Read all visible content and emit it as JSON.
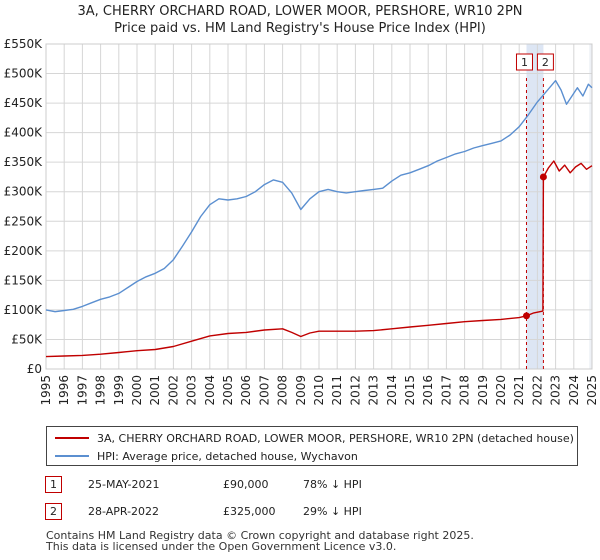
{
  "title": "3A, CHERRY ORCHARD ROAD, LOWER MOOR, PERSHORE, WR10 2PN",
  "subtitle": "Price paid vs. HM Land Registry's House Price Index (HPI)",
  "legend": {
    "red_label": "3A, CHERRY ORCHARD ROAD, LOWER MOOR, PERSHORE, WR10 2PN (detached house)",
    "blue_label": "HPI: Average price, detached house, Wychavon"
  },
  "transactions": [
    {
      "id": "1",
      "date": "25-MAY-2021",
      "price": "£90,000",
      "hpi": "78% ↓ HPI"
    },
    {
      "id": "2",
      "date": "28-APR-2022",
      "price": "£325,000",
      "hpi": "29% ↓ HPI"
    }
  ],
  "footer": {
    "line1": "Contains HM Land Registry data © Crown copyright and database right 2025.",
    "line2": "This data is licensed under the Open Government Licence v3.0."
  },
  "colors": {
    "red": "#c00000",
    "blue": "#5b8fd0",
    "grid": "#d6d6d6",
    "band": "#dde6f4"
  },
  "chart_data": {
    "type": "line",
    "title": "3A, CHERRY ORCHARD ROAD, LOWER MOOR, PERSHORE, WR10 2PN",
    "subtitle": "Price paid vs. HM Land Registry's House Price Index (HPI)",
    "xlim": [
      1995,
      2025
    ],
    "ylim": [
      0,
      550000
    ],
    "yticks": [
      {
        "v": 0,
        "label": "£0"
      },
      {
        "v": 50000,
        "label": "£50K"
      },
      {
        "v": 100000,
        "label": "£100K"
      },
      {
        "v": 150000,
        "label": "£150K"
      },
      {
        "v": 200000,
        "label": "£200K"
      },
      {
        "v": 250000,
        "label": "£250K"
      },
      {
        "v": 300000,
        "label": "£300K"
      },
      {
        "v": 350000,
        "label": "£350K"
      },
      {
        "v": 400000,
        "label": "£400K"
      },
      {
        "v": 450000,
        "label": "£450K"
      },
      {
        "v": 500000,
        "label": "£500K"
      },
      {
        "v": 550000,
        "label": "£550K"
      }
    ],
    "xticks": [
      "1995",
      "1996",
      "1997",
      "1998",
      "1999",
      "2000",
      "2001",
      "2002",
      "2003",
      "2004",
      "2005",
      "2006",
      "2007",
      "2008",
      "2009",
      "2010",
      "2011",
      "2012",
      "2013",
      "2014",
      "2015",
      "2016",
      "2017",
      "2018",
      "2019",
      "2020",
      "2021",
      "2022",
      "2023",
      "2024",
      "2025"
    ],
    "sale_markers": [
      {
        "id": "1",
        "x": 2021.4,
        "y": 90000
      },
      {
        "id": "2",
        "x": 2022.33,
        "y": 325000
      }
    ],
    "series": [
      {
        "name": "HPI: Average price, detached house, Wychavon",
        "color": "#5b8fd0",
        "points": [
          [
            1995,
            100000
          ],
          [
            1995.5,
            97000
          ],
          [
            1996,
            99000
          ],
          [
            1996.5,
            101000
          ],
          [
            1997,
            106000
          ],
          [
            1997.5,
            112000
          ],
          [
            1998,
            118000
          ],
          [
            1998.5,
            122000
          ],
          [
            1999,
            128000
          ],
          [
            1999.5,
            138000
          ],
          [
            2000,
            148000
          ],
          [
            2000.5,
            156000
          ],
          [
            2001,
            162000
          ],
          [
            2001.5,
            170000
          ],
          [
            2002,
            185000
          ],
          [
            2002.5,
            208000
          ],
          [
            2003,
            232000
          ],
          [
            2003.5,
            258000
          ],
          [
            2004,
            278000
          ],
          [
            2004.5,
            288000
          ],
          [
            2005,
            286000
          ],
          [
            2005.5,
            288000
          ],
          [
            2006,
            292000
          ],
          [
            2006.5,
            300000
          ],
          [
            2007,
            312000
          ],
          [
            2007.5,
            320000
          ],
          [
            2008,
            316000
          ],
          [
            2008.5,
            298000
          ],
          [
            2009,
            270000
          ],
          [
            2009.5,
            288000
          ],
          [
            2010,
            300000
          ],
          [
            2010.5,
            304000
          ],
          [
            2011,
            300000
          ],
          [
            2011.5,
            298000
          ],
          [
            2012,
            300000
          ],
          [
            2012.5,
            302000
          ],
          [
            2013,
            304000
          ],
          [
            2013.5,
            306000
          ],
          [
            2014,
            318000
          ],
          [
            2014.5,
            328000
          ],
          [
            2015,
            332000
          ],
          [
            2015.5,
            338000
          ],
          [
            2016,
            344000
          ],
          [
            2016.5,
            352000
          ],
          [
            2017,
            358000
          ],
          [
            2017.5,
            364000
          ],
          [
            2018,
            368000
          ],
          [
            2018.5,
            374000
          ],
          [
            2019,
            378000
          ],
          [
            2019.5,
            382000
          ],
          [
            2020,
            386000
          ],
          [
            2020.5,
            396000
          ],
          [
            2021,
            410000
          ],
          [
            2021.5,
            430000
          ],
          [
            2022,
            452000
          ],
          [
            2022.5,
            470000
          ],
          [
            2023,
            488000
          ],
          [
            2023.3,
            472000
          ],
          [
            2023.6,
            448000
          ],
          [
            2023.9,
            462000
          ],
          [
            2024.2,
            476000
          ],
          [
            2024.5,
            462000
          ],
          [
            2024.8,
            482000
          ],
          [
            2025,
            476000
          ]
        ]
      },
      {
        "name": "3A, CHERRY ORCHARD ROAD, LOWER MOOR, PERSHORE, WR10 2PN (detached house)",
        "color": "#c00000",
        "points": [
          [
            1995,
            21000
          ],
          [
            1996,
            22000
          ],
          [
            1997,
            23000
          ],
          [
            1998,
            25000
          ],
          [
            1999,
            28000
          ],
          [
            2000,
            31000
          ],
          [
            2001,
            33000
          ],
          [
            2002,
            38000
          ],
          [
            2003,
            47000
          ],
          [
            2004,
            56000
          ],
          [
            2005,
            60000
          ],
          [
            2006,
            62000
          ],
          [
            2007,
            66000
          ],
          [
            2008,
            68000
          ],
          [
            2008.5,
            62000
          ],
          [
            2009,
            55000
          ],
          [
            2009.5,
            61000
          ],
          [
            2010,
            64000
          ],
          [
            2011,
            64000
          ],
          [
            2012,
            64000
          ],
          [
            2013,
            65000
          ],
          [
            2014,
            68000
          ],
          [
            2015,
            71000
          ],
          [
            2016,
            74000
          ],
          [
            2017,
            77000
          ],
          [
            2018,
            80000
          ],
          [
            2019,
            82000
          ],
          [
            2020,
            84000
          ],
          [
            2021,
            87000
          ],
          [
            2021.4,
            90000
          ],
          [
            2021.8,
            95000
          ],
          [
            2022.3,
            98000
          ],
          [
            2022.33,
            325000
          ],
          [
            2022.6,
            340000
          ],
          [
            2022.9,
            352000
          ],
          [
            2023.2,
            335000
          ],
          [
            2023.5,
            345000
          ],
          [
            2023.8,
            332000
          ],
          [
            2024.1,
            342000
          ],
          [
            2024.4,
            348000
          ],
          [
            2024.7,
            338000
          ],
          [
            2025,
            344000
          ]
        ]
      }
    ]
  }
}
